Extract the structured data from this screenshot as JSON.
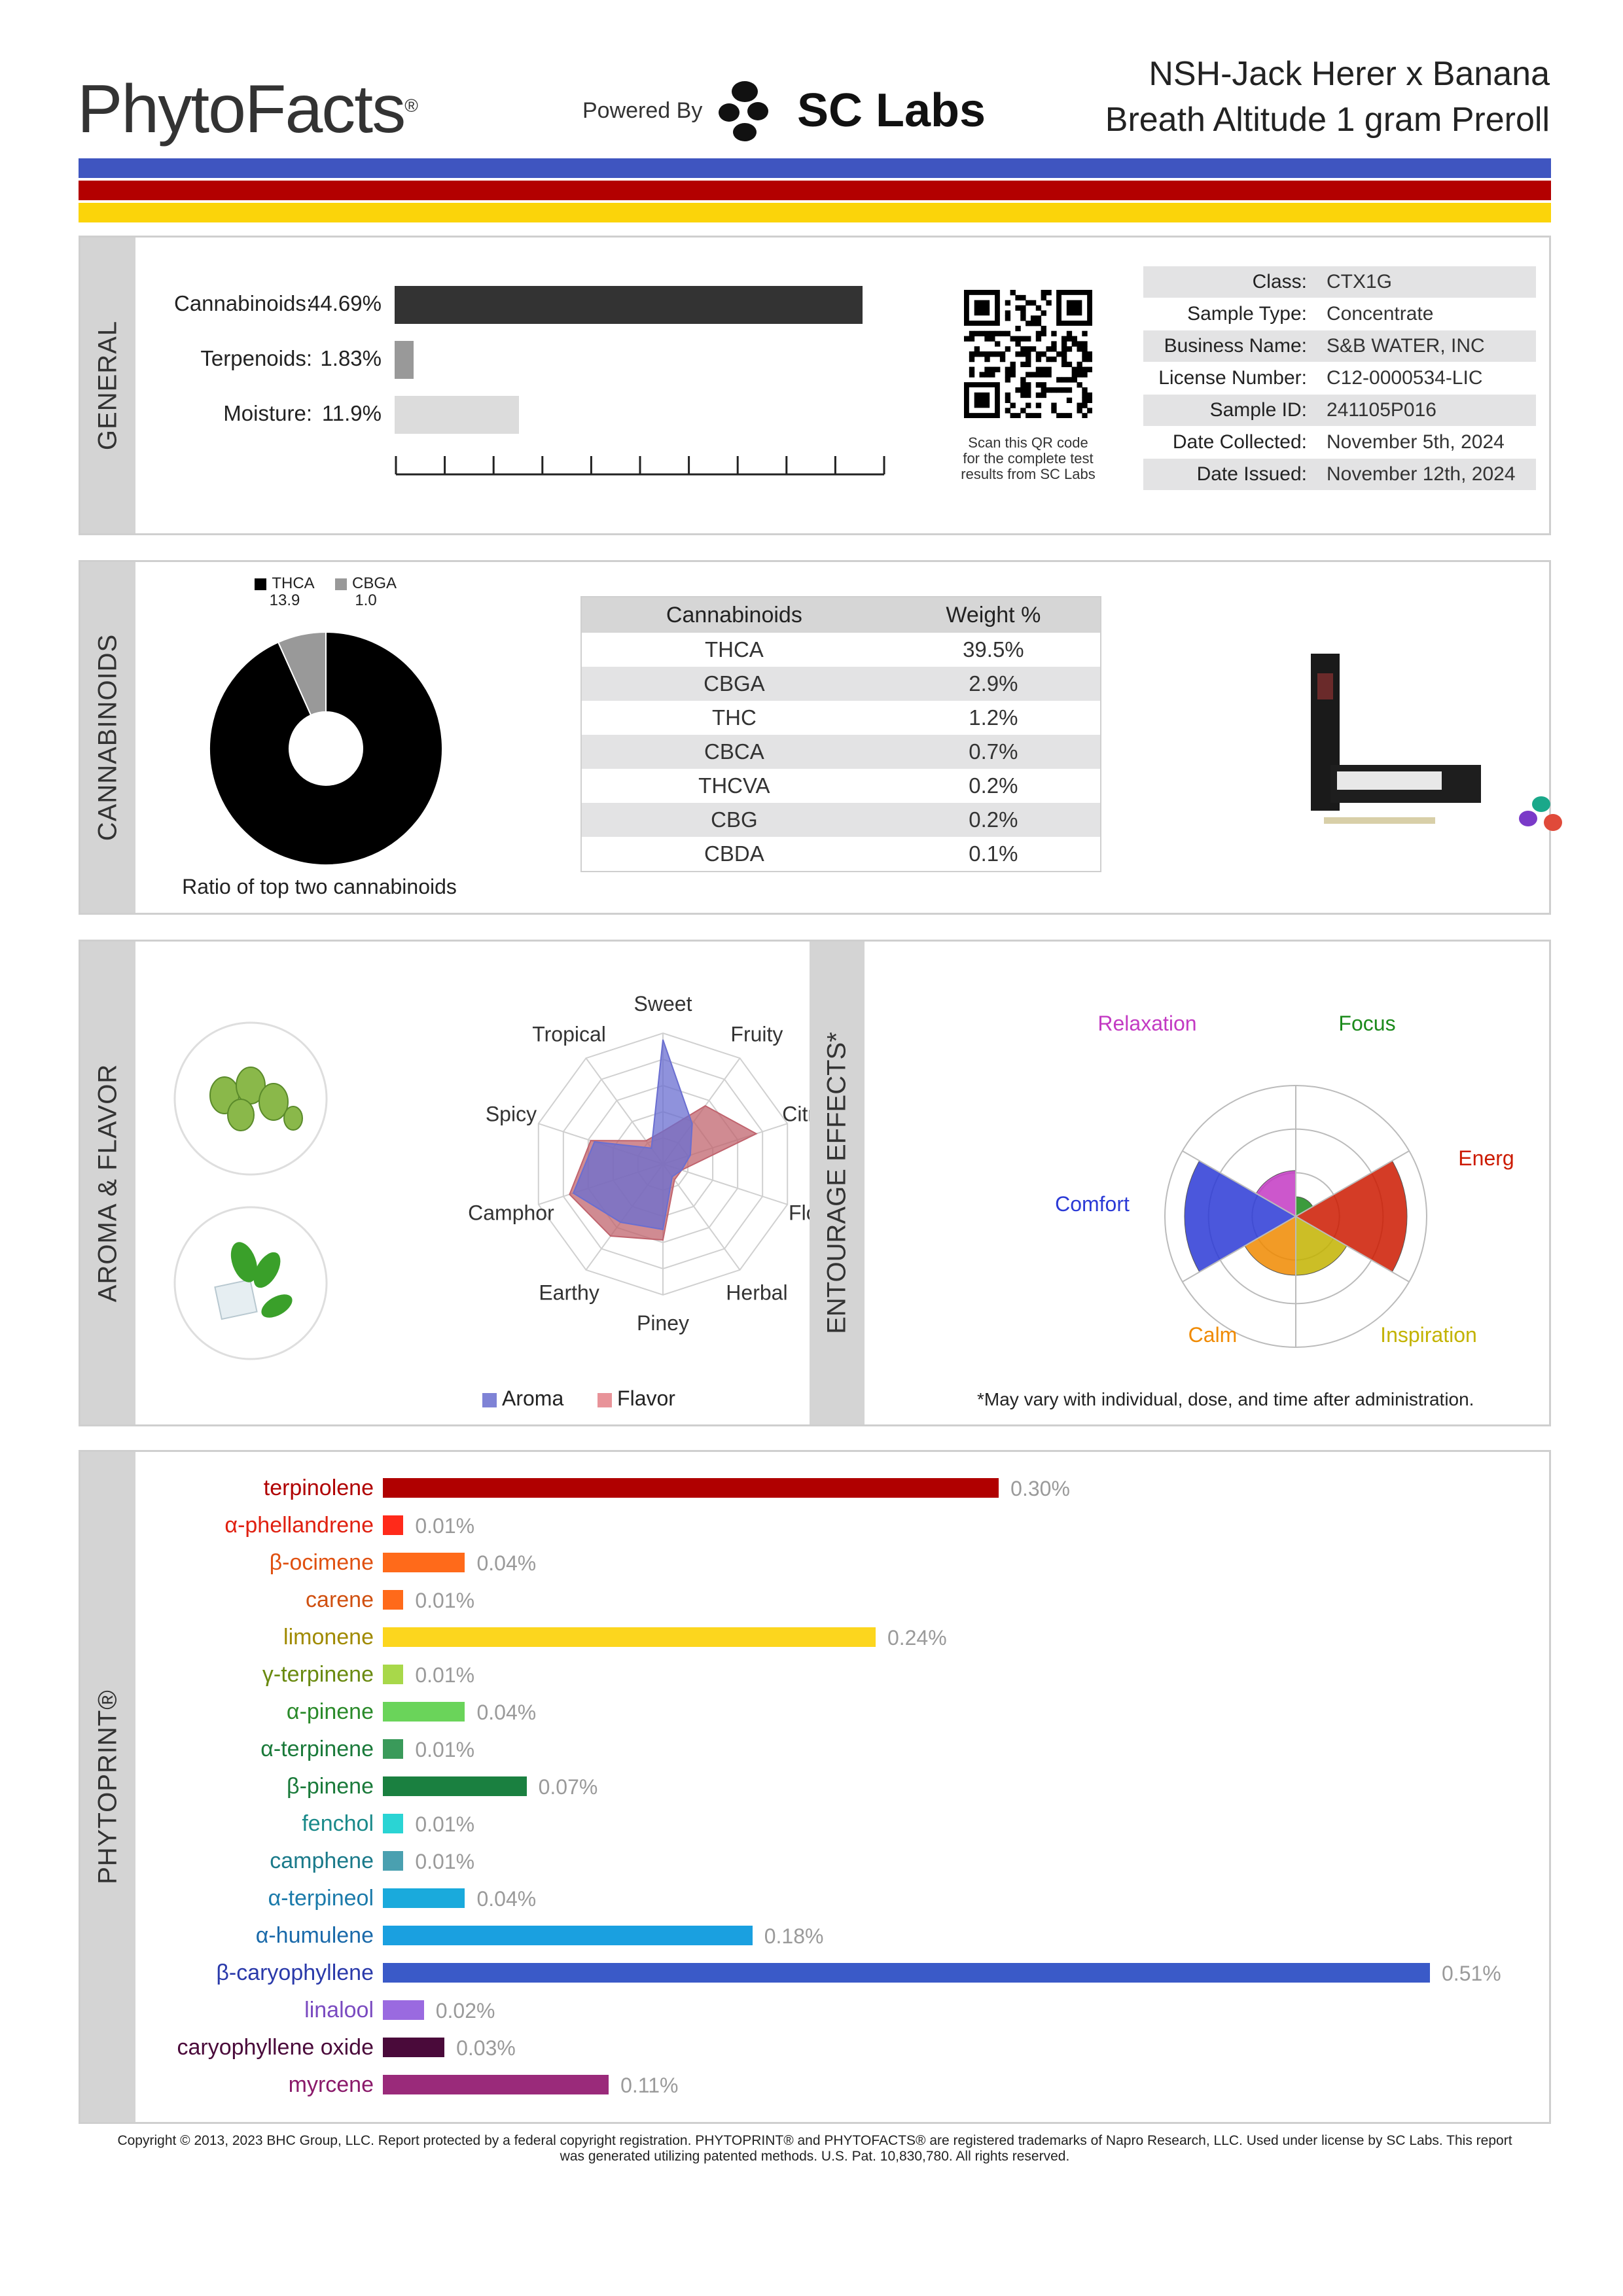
{
  "header": {
    "brand": "PhytoFacts",
    "brand_mark": "®",
    "powered_by": "Powered By",
    "lab_name": "SC Labs",
    "product_line1": "NSH-Jack Herer x Banana",
    "product_line2": "Breath Altitude 1 gram Preroll",
    "stripe_colors": [
      "#3f55c0",
      "#b30000",
      "#fbd40a"
    ]
  },
  "general": {
    "tab": "GENERAL",
    "bars": [
      {
        "label": "Cannabinoids:",
        "value": "44.69%",
        "fraction": 0.4469,
        "color": "#333333"
      },
      {
        "label": "Terpenoids:",
        "value": "1.83%",
        "fraction": 0.0183,
        "color": "#999999"
      },
      {
        "label": "Moisture:",
        "value": "11.9%",
        "fraction": 0.119,
        "color": "#dcdcdc"
      }
    ],
    "qr_caption": [
      "Scan this QR code",
      "for the complete test",
      "results from SC Labs"
    ],
    "info": [
      {
        "key": "Class:",
        "value": "CTX1G"
      },
      {
        "key": "Sample Type:",
        "value": "Concentrate"
      },
      {
        "key": "Business Name:",
        "value": "S&B WATER, INC"
      },
      {
        "key": "License Number:",
        "value": "C12-0000534-LIC"
      },
      {
        "key": "Sample ID:",
        "value": "241105P016"
      },
      {
        "key": "Date Collected:",
        "value": "November 5th, 2024"
      },
      {
        "key": "Date Issued:",
        "value": "November 12th, 2024"
      }
    ]
  },
  "cannabinoids": {
    "tab": "CANNABINOIDS",
    "pie_legend": [
      {
        "name": "THCA",
        "value": "13.9",
        "color": "#000000"
      },
      {
        "name": "CBGA",
        "value": "1.0",
        "color": "#999999"
      }
    ],
    "pie_fractions": [
      0.9329,
      0.0671
    ],
    "pie_caption": "Ratio of top two cannabinoids",
    "table_headers": [
      "Cannabinoids",
      "Weight %"
    ],
    "table_rows": [
      [
        "THCA",
        "39.5%"
      ],
      [
        "CBGA",
        "2.9%"
      ],
      [
        "THC",
        "1.2%"
      ],
      [
        "CBCA",
        "0.7%"
      ],
      [
        "THCVA",
        "0.2%"
      ],
      [
        "CBG",
        "0.2%"
      ],
      [
        "CBDA",
        "0.1%"
      ]
    ]
  },
  "aroma": {
    "tab": "AROMA & FLAVOR",
    "axes": [
      "Sweet",
      "Fruity",
      "Citrusy",
      "Floral",
      "Herbal",
      "Piney",
      "Earthy",
      "Camphor",
      "Spicy",
      "Tropical"
    ],
    "aroma_values": [
      0.95,
      0.38,
      0.22,
      0.15,
      0.12,
      0.5,
      0.55,
      0.72,
      0.55,
      0.15
    ],
    "flavor_values": [
      0.25,
      0.55,
      0.75,
      0.15,
      0.15,
      0.58,
      0.68,
      0.75,
      0.58,
      0.22
    ],
    "legend": [
      {
        "name": "Aroma",
        "color": "#7f83d6"
      },
      {
        "name": "Flavor",
        "color": "#e89399"
      }
    ]
  },
  "entourage": {
    "tab": "ENTOURAGE EFFECTS*",
    "labels": [
      {
        "name": "Relaxation",
        "color": "#c33ac3"
      },
      {
        "name": "Focus",
        "color": "#1a8a1a"
      },
      {
        "name": "Energy",
        "color": "#cc1a00"
      },
      {
        "name": "Inspiration",
        "color": "#c3b300"
      },
      {
        "name": "Calm",
        "color": "#f08a00"
      },
      {
        "name": "Comfort",
        "color": "#2b3ad6"
      }
    ],
    "values": [
      0.35,
      0.15,
      0.85,
      0.45,
      0.45,
      0.85
    ],
    "footnote": "*May vary with individual, dose, and time after administration."
  },
  "phytoprint": {
    "tab": "PHYTOPRINT®",
    "terpenes": [
      {
        "name": "terpinolene",
        "value": "0.30%",
        "amount": 0.3,
        "color": "#b00000",
        "label_color": "#b00000"
      },
      {
        "name": "α-phellandrene",
        "value": "0.01%",
        "amount": 0.01,
        "color": "#ff2a1a",
        "label_color": "#e02010"
      },
      {
        "name": "β-ocimene",
        "value": "0.04%",
        "amount": 0.04,
        "color": "#ff6a1a",
        "label_color": "#e05010"
      },
      {
        "name": "carene",
        "value": "0.01%",
        "amount": 0.01,
        "color": "#ff6a1a",
        "label_color": "#d05010"
      },
      {
        "name": "limonene",
        "value": "0.24%",
        "amount": 0.24,
        "color": "#fcd61e",
        "label_color": "#a08a00"
      },
      {
        "name": "γ-terpinene",
        "value": "0.01%",
        "amount": 0.01,
        "color": "#a8d84a",
        "label_color": "#6a8a10"
      },
      {
        "name": "α-pinene",
        "value": "0.04%",
        "amount": 0.04,
        "color": "#6ad45a",
        "label_color": "#2a8a2a"
      },
      {
        "name": "α-terpinene",
        "value": "0.01%",
        "amount": 0.01,
        "color": "#3a9a5a",
        "label_color": "#1a7a3a"
      },
      {
        "name": "β-pinene",
        "value": "0.07%",
        "amount": 0.07,
        "color": "#1a8040",
        "label_color": "#1a7a3a"
      },
      {
        "name": "fenchol",
        "value": "0.01%",
        "amount": 0.01,
        "color": "#2ad4d4",
        "label_color": "#1a8a8a"
      },
      {
        "name": "camphene",
        "value": "0.01%",
        "amount": 0.01,
        "color": "#4aa0b0",
        "label_color": "#1a7a8a"
      },
      {
        "name": "α-terpineol",
        "value": "0.04%",
        "amount": 0.04,
        "color": "#1aaadc",
        "label_color": "#1a7aaa"
      },
      {
        "name": "α-humulene",
        "value": "0.18%",
        "amount": 0.18,
        "color": "#1aa0e0",
        "label_color": "#1a6aaa"
      },
      {
        "name": "β-caryophyllene",
        "value": "0.51%",
        "amount": 0.51,
        "color": "#3a5ac8",
        "label_color": "#2a3aaa"
      },
      {
        "name": "linalool",
        "value": "0.02%",
        "amount": 0.02,
        "color": "#9a6ae0",
        "label_color": "#7a4ac0"
      },
      {
        "name": "caryophyllene oxide",
        "value": "0.03%",
        "amount": 0.03,
        "color": "#4a0a3a",
        "label_color": "#4a0a3a"
      },
      {
        "name": "myrcene",
        "value": "0.11%",
        "amount": 0.11,
        "color": "#9a2a7a",
        "label_color": "#8a1a6a"
      }
    ]
  },
  "footer": {
    "line1": "Copyright © 2013, 2023 BHC Group, LLC. Report protected by a federal copyright registration. PHYTOPRINT® and PHYTOFACTS® are registered trademarks of Napro Research, LLC. Used under license by SC Labs. This report",
    "line2": "was generated utilizing patented methods. U.S. Pat. 10,830,780. All rights reserved."
  }
}
